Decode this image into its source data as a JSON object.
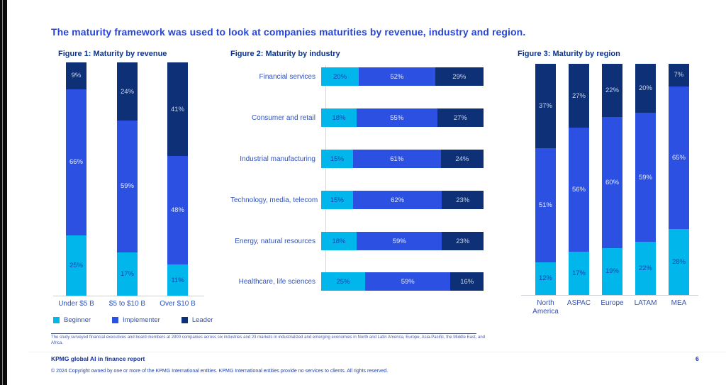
{
  "page": {
    "heading": "The maturity framework was used to look at companies maturities by revenue, industry and region.",
    "footnote": "The study surveyed financial executives and board members at 2900 companies across six industries and 23 markets in industrialized and emerging economies in North and Latin America, Europe, Asia-Pacific, the Middle East, and Africa.",
    "footer_title": "KPMG global AI in finance report",
    "footer_copyright": "© 2024 Copyright owned by one or more of the KPMG International entities. KPMG International entities provide no services to clients. All rights reserved.",
    "page_number": "6"
  },
  "colors": {
    "beginner": "#00b6ea",
    "implementer": "#2b50e2",
    "leader": "#0d3076",
    "heading": "#2545d8",
    "caption": "#0b3390"
  },
  "legend": {
    "items": [
      {
        "label": "Beginner",
        "color": "#00b6ea"
      },
      {
        "label": "Implementer",
        "color": "#2b50e2"
      },
      {
        "label": "Leader",
        "color": "#0d3076"
      }
    ]
  },
  "chart_data": [
    {
      "type": "bar",
      "title": "Figure 1: Maturity by revenue",
      "orientation": "vertical",
      "stacked": true,
      "unit": "%",
      "ylim": [
        0,
        100
      ],
      "grid": false,
      "categories": [
        "Under $5 B",
        "$5 to $10 B",
        "Over $10 B"
      ],
      "series": [
        {
          "name": "Beginner",
          "values": [
            25,
            17,
            11
          ]
        },
        {
          "name": "Implementer",
          "values": [
            66,
            59,
            48
          ]
        },
        {
          "name": "Leader",
          "values": [
            9,
            24,
            41
          ]
        }
      ]
    },
    {
      "type": "bar",
      "title": "Figure 2: Maturity by industry",
      "orientation": "horizontal",
      "stacked": true,
      "unit": "%",
      "xlim": [
        0,
        100
      ],
      "grid": false,
      "categories": [
        "Financial services",
        "Consumer and retail",
        "Industrial manufacturing",
        "Technology, media, telecom",
        "Energy, natural resources",
        "Healthcare, life sciences"
      ],
      "series": [
        {
          "name": "Beginner",
          "values": [
            20,
            18,
            15,
            15,
            18,
            25
          ]
        },
        {
          "name": "Implementer",
          "values": [
            52,
            55,
            61,
            62,
            59,
            59
          ]
        },
        {
          "name": "Leader",
          "values": [
            29,
            27,
            24,
            23,
            23,
            16
          ]
        }
      ]
    },
    {
      "type": "bar",
      "title": "Figure 3: Maturity by region",
      "orientation": "vertical",
      "stacked": true,
      "unit": "%",
      "ylim": [
        0,
        100
      ],
      "grid": false,
      "categories": [
        "North America",
        "ASPAC",
        "Europe",
        "LATAM",
        "MEA"
      ],
      "series": [
        {
          "name": "Beginner",
          "values": [
            12,
            17,
            19,
            22,
            28
          ]
        },
        {
          "name": "Implementer",
          "values": [
            51,
            56,
            60,
            59,
            65
          ]
        },
        {
          "name": "Leader",
          "values": [
            37,
            27,
            22,
            20,
            7
          ]
        }
      ]
    }
  ]
}
